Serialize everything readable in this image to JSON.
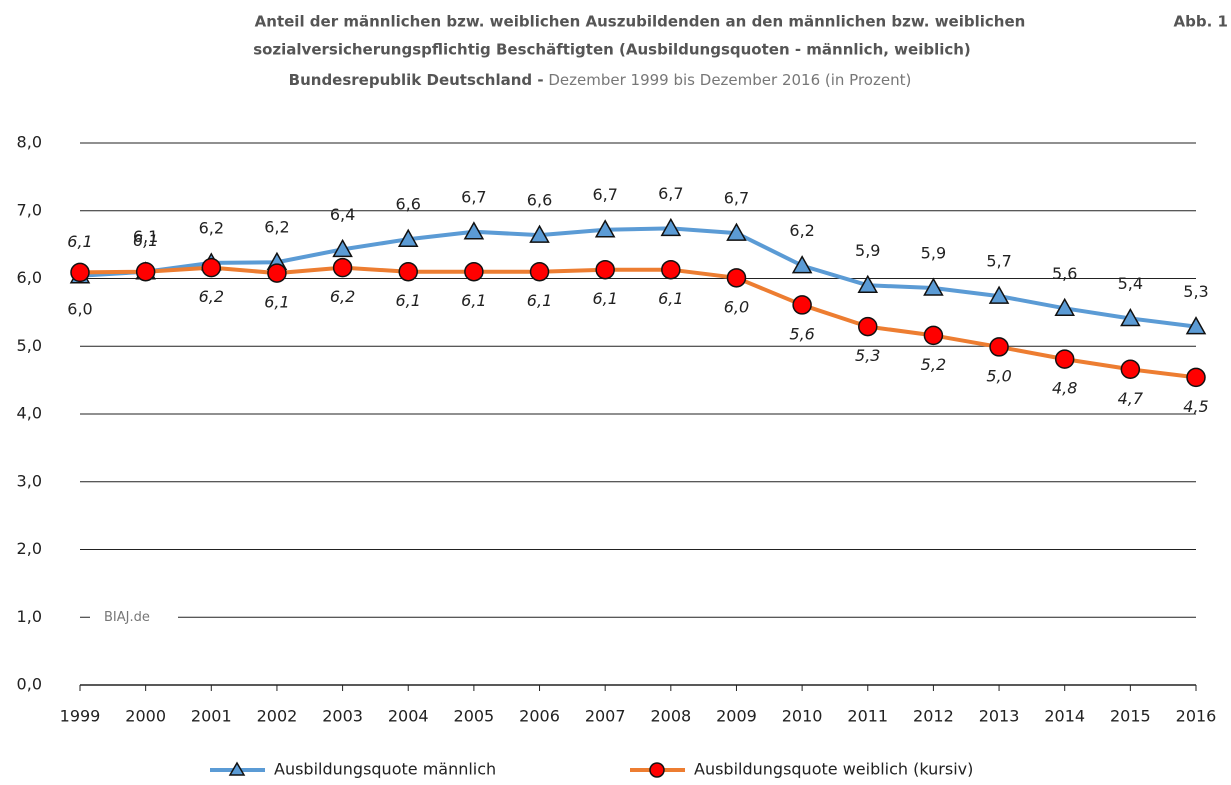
{
  "chart_data": {
    "type": "line",
    "title_lines": [
      "Anteil der männlichen bzw. weiblichen Auszubildenden an den männlichen bzw. weiblichen",
      "sozialversicherungspflichtig Beschäftigten (Ausbildungsquoten - männlich, weiblich)"
    ],
    "title_bold_part": "Bundesrepublik Deutschland -",
    "title_normal_part": "Dezember 1999 bis Dezember 2016 (in Prozent)",
    "figure_label": "Abb. 1",
    "watermark": "BIAJ.de",
    "categories": [
      "1999",
      "2000",
      "2001",
      "2002",
      "2003",
      "2004",
      "2005",
      "2006",
      "2007",
      "2008",
      "2009",
      "2010",
      "2011",
      "2012",
      "2013",
      "2014",
      "2015",
      "2016"
    ],
    "series": [
      {
        "name": "Ausbildungsquote männlich",
        "color": "#5b9bd5",
        "marker": "triangle",
        "marker_color": "#5b9bd5",
        "values": [
          6.04,
          6.1,
          6.23,
          6.24,
          6.43,
          6.58,
          6.69,
          6.64,
          6.72,
          6.74,
          6.67,
          6.19,
          5.9,
          5.86,
          5.74,
          5.56,
          5.41,
          5.29
        ],
        "value_labels": [
          "6,0",
          "6,1",
          "6,2",
          "6,2",
          "6,4",
          "6,6",
          "6,7",
          "6,6",
          "6,7",
          "6,7",
          "6,7",
          "6,2",
          "5,9",
          "5,9",
          "5,7",
          "5,6",
          "5,4",
          "5,3"
        ]
      },
      {
        "name": "Ausbildungsquote weiblich (kursiv)",
        "color": "#ed7d31",
        "marker": "circle",
        "marker_color": "#ff0000",
        "values": [
          6.09,
          6.1,
          6.16,
          6.08,
          6.16,
          6.1,
          6.1,
          6.1,
          6.13,
          6.13,
          6.01,
          5.61,
          5.29,
          5.16,
          4.99,
          4.81,
          4.66,
          4.54
        ],
        "value_labels": [
          "6,1",
          "6,1",
          "6,2",
          "6,1",
          "6,2",
          "6,1",
          "6,1",
          "6,1",
          "6,1",
          "6,1",
          "6,0",
          "5,6",
          "5,3",
          "5,2",
          "5,0",
          "4,8",
          "4,7",
          "4,5"
        ]
      }
    ],
    "ylim": [
      0,
      8
    ],
    "yticks": [
      {
        "value": 0,
        "label": "0,0"
      },
      {
        "value": 1,
        "label": "1,0"
      },
      {
        "value": 2,
        "label": "2,0"
      },
      {
        "value": 3,
        "label": "3,0"
      },
      {
        "value": 4,
        "label": "4,0"
      },
      {
        "value": 5,
        "label": "5,0"
      },
      {
        "value": 6,
        "label": "6,0"
      },
      {
        "value": 7,
        "label": "7,0"
      },
      {
        "value": 8,
        "label": "8,0"
      }
    ],
    "grid": true
  }
}
